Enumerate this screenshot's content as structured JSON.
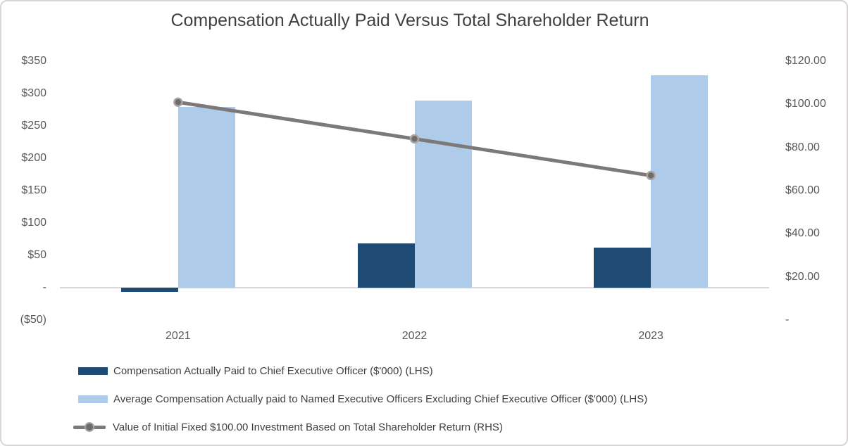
{
  "chart_data": {
    "type": "combo",
    "title": "Compensation Actually Paid Versus Total Shareholder Return",
    "categories": [
      "2021",
      "2022",
      "2023"
    ],
    "series": [
      {
        "key": "ceo-cap",
        "name": "Compensation Actually Paid to Chief Executive Officer ($'000) (LHS)",
        "type": "bar",
        "axis": "left",
        "color": "#1f4a74",
        "values": [
          -6,
          68,
          62
        ]
      },
      {
        "key": "neo-avg-cap",
        "name": "Average Compensation Actually paid to Named Executive Officers Excluding Chief Executive Officer ($'000) (LHS)",
        "type": "bar",
        "axis": "left",
        "color": "#aecbea",
        "values": [
          279,
          289,
          328
        ]
      },
      {
        "key": "tsr",
        "name": "Value of Initial Fixed $100.00 Investment Based on Total Shareholder Return (RHS)",
        "type": "line",
        "axis": "right",
        "color": "#7e7979",
        "marker_color": "#716c6c",
        "marker_ring_color": "#aba6a6",
        "values": [
          101,
          84,
          67
        ]
      }
    ],
    "left_axis": {
      "range": [
        -50,
        350
      ],
      "ticks": [
        {
          "label": "$350",
          "value": 350
        },
        {
          "label": "$300",
          "value": 300
        },
        {
          "label": "$250",
          "value": 250
        },
        {
          "label": "$200",
          "value": 200
        },
        {
          "label": "$150",
          "value": 150
        },
        {
          "label": "$100",
          "value": 100
        },
        {
          "label": "$50",
          "value": 50
        },
        {
          "label": "-",
          "value": 0
        },
        {
          "label": "($50)",
          "value": -50
        }
      ]
    },
    "right_axis": {
      "range": [
        0,
        120
      ],
      "ticks": [
        {
          "label": "$120.00",
          "value": 120
        },
        {
          "label": "$100.00",
          "value": 100
        },
        {
          "label": "$80.00",
          "value": 80
        },
        {
          "label": "$60.00",
          "value": 60
        },
        {
          "label": "$40.00",
          "value": 40
        },
        {
          "label": "$20.00",
          "value": 20
        },
        {
          "label": "-",
          "value": 0
        }
      ]
    },
    "grid": false,
    "legend_position": "bottom-left",
    "colors": {
      "title_text": "#404040",
      "axis_text": "#595959",
      "legend_text": "#404040",
      "zero_line": "#d9d9d9"
    }
  }
}
